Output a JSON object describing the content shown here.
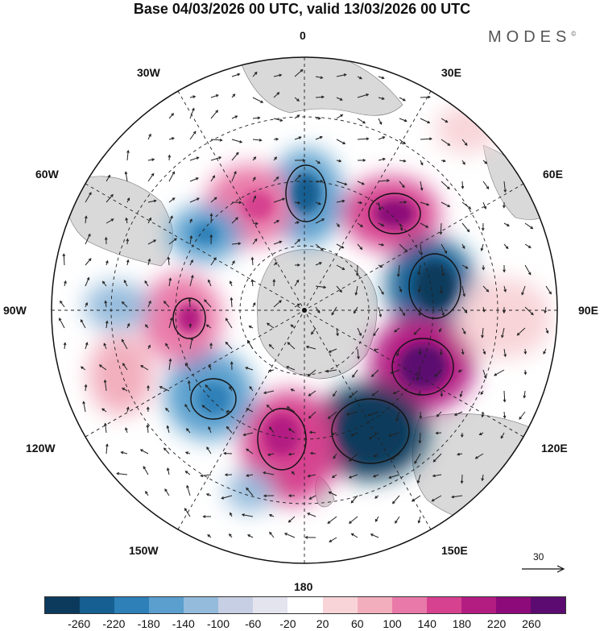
{
  "title": "Base 04/03/2026 00 UTC, valid 13/03/2026 00 UTC",
  "brand": "MODES",
  "brand_mark": "©",
  "longitude_labels": {
    "lon_0": "0",
    "lon_30e": "30E",
    "lon_60e": "60E",
    "lon_90e": "90E",
    "lon_120e": "120E",
    "lon_150e": "150E",
    "lon_180": "180",
    "lon_150w": "150W",
    "lon_120w": "120W",
    "lon_90w": "90W",
    "lon_60w": "60W",
    "lon_30w": "30W"
  },
  "reference_vector_label": "30",
  "colorbar": {
    "colors": [
      "#0b3a5c",
      "#155f92",
      "#2d80b8",
      "#5a9fcd",
      "#94bbdc",
      "#c6cfe3",
      "#e4e4ef",
      "#ffffff",
      "#f8d4d8",
      "#f2aebd",
      "#e979a8",
      "#d6428f",
      "#b31d82",
      "#8c0a79",
      "#5c0b70"
    ],
    "tick_labels": [
      "-260",
      "-220",
      "-180",
      "-140",
      "-100",
      "-60",
      "-20",
      "20",
      "60",
      "100",
      "140",
      "180",
      "220",
      "260"
    ]
  },
  "field_colors": {
    "land": "#d9d9d9",
    "ocean": "#ffffff"
  }
}
